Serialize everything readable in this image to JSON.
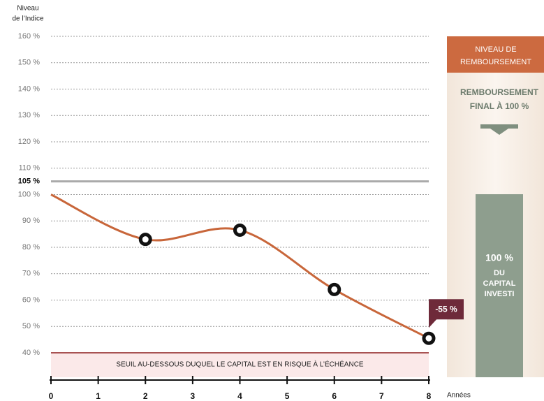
{
  "chart_data": {
    "type": "line",
    "ylabel_lines": [
      "Niveau",
      "de l’Indice"
    ],
    "xlabel": "Années",
    "x": [
      0,
      2,
      4,
      6,
      8
    ],
    "series": [
      {
        "name": "Indice",
        "color": "#c8663a",
        "values": [
          100,
          83,
          86.5,
          64,
          45.5
        ]
      }
    ],
    "xlim": [
      0,
      8
    ],
    "xticks": [
      0,
      1,
      2,
      3,
      4,
      5,
      6,
      7,
      8
    ],
    "ylim": [
      40,
      160
    ],
    "yticks": [
      {
        "value": 40,
        "label": "40 %"
      },
      {
        "value": 50,
        "label": "50 %"
      },
      {
        "value": 60,
        "label": "60 %"
      },
      {
        "value": 70,
        "label": "70 %"
      },
      {
        "value": 80,
        "label": "80 %"
      },
      {
        "value": 90,
        "label": "90 %"
      },
      {
        "value": 100,
        "label": "100 %"
      },
      {
        "value": 110,
        "label": "110 %"
      },
      {
        "value": 120,
        "label": "120 %"
      },
      {
        "value": 130,
        "label": "130 %"
      },
      {
        "value": 140,
        "label": "140 %"
      },
      {
        "value": 150,
        "label": "150 %"
      },
      {
        "value": 160,
        "label": "160 %"
      }
    ],
    "grid": true,
    "reference_line": {
      "value": 105,
      "label": "105 %",
      "color": "#aaaaaa"
    },
    "threshold": {
      "value": 40,
      "label": "SEUIL AU-DESSOUS DUQUEL LE CAPITAL EST EN RISQUE À L’ÉCHÉANCE",
      "color": "#8b1a1a"
    },
    "annotation": "-55 %",
    "panel": {
      "header_lines": [
        "NIVEAU DE",
        "REMBOURSEMENT"
      ],
      "text_lines": [
        "REMBOURSEMENT",
        "FINAL À 100 %"
      ],
      "bar_lines": [
        "100 %",
        "DU",
        "CAPITAL",
        "INVESTI"
      ]
    }
  }
}
